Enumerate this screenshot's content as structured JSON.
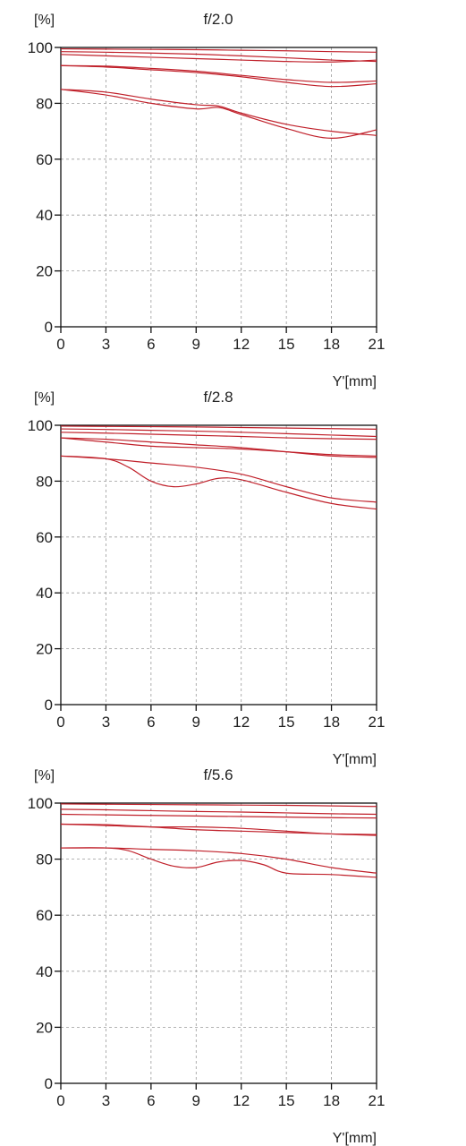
{
  "chart_data": [
    {
      "type": "line",
      "title": "f/2.0",
      "ylabel": "[%]",
      "xlabel": "Y'[mm]",
      "xlim": [
        0,
        21
      ],
      "ylim": [
        0,
        100
      ],
      "x_ticks": [
        "0",
        "3",
        "6",
        "9",
        "12",
        "15",
        "18",
        "21"
      ],
      "y_ticks": [
        "0",
        "20",
        "40",
        "60",
        "80",
        "100"
      ],
      "grid": true,
      "color": "#c0202a",
      "series": [
        {
          "x": [
            0,
            3,
            6,
            9,
            12,
            15,
            18,
            21
          ],
          "y": [
            99.5,
            99.4,
            99.3,
            99.2,
            99.0,
            98.8,
            98.5,
            98.3
          ]
        },
        {
          "x": [
            0,
            3,
            6,
            9,
            12,
            15,
            18,
            21
          ],
          "y": [
            98.5,
            98.3,
            98.0,
            97.6,
            97.0,
            96.3,
            95.5,
            95.0
          ]
        },
        {
          "x": [
            0,
            3,
            6,
            9,
            12,
            15,
            18,
            21
          ],
          "y": [
            97.5,
            97.0,
            96.5,
            96.0,
            95.5,
            95.0,
            94.8,
            95.5
          ]
        },
        {
          "x": [
            0,
            3,
            6,
            9,
            12,
            15,
            18,
            21
          ],
          "y": [
            93.5,
            93.3,
            92.5,
            91.5,
            90.0,
            88.5,
            87.5,
            88.0
          ]
        },
        {
          "x": [
            0,
            3,
            6,
            9,
            12,
            15,
            18,
            21
          ],
          "y": [
            93.5,
            93.0,
            92.0,
            91.0,
            89.5,
            87.5,
            86.0,
            87.0
          ]
        },
        {
          "x": [
            0,
            3,
            6,
            9,
            10.5,
            12,
            15,
            18,
            21
          ],
          "y": [
            85,
            83,
            80,
            78,
            78.5,
            76,
            71,
            67.5,
            70.5
          ]
        },
        {
          "x": [
            0,
            3,
            6,
            9,
            10.5,
            12,
            15,
            18,
            21
          ],
          "y": [
            85,
            84,
            81.5,
            79.5,
            79,
            76.5,
            72.5,
            70,
            68.5
          ]
        }
      ]
    },
    {
      "type": "line",
      "title": "f/2.8",
      "ylabel": "[%]",
      "xlabel": "Y'[mm]",
      "xlim": [
        0,
        21
      ],
      "ylim": [
        0,
        100
      ],
      "x_ticks": [
        "0",
        "3",
        "6",
        "9",
        "12",
        "15",
        "18",
        "21"
      ],
      "y_ticks": [
        "0",
        "20",
        "40",
        "60",
        "80",
        "100"
      ],
      "grid": true,
      "color": "#c0202a",
      "series": [
        {
          "x": [
            0,
            3,
            6,
            9,
            12,
            15,
            18,
            21
          ],
          "y": [
            99.7,
            99.6,
            99.5,
            99.4,
            99.2,
            99.0,
            98.8,
            98.6
          ]
        },
        {
          "x": [
            0,
            3,
            6,
            9,
            12,
            15,
            18,
            21
          ],
          "y": [
            98.7,
            98.5,
            98.2,
            97.9,
            97.5,
            97.0,
            96.5,
            96.0
          ]
        },
        {
          "x": [
            0,
            3,
            6,
            9,
            12,
            15,
            18,
            21
          ],
          "y": [
            97.5,
            97.2,
            96.8,
            96.4,
            96.0,
            95.5,
            95.2,
            95.0
          ]
        },
        {
          "x": [
            0,
            3,
            6,
            9,
            12,
            15,
            18,
            21
          ],
          "y": [
            95.5,
            95.0,
            94.0,
            93.0,
            92.0,
            90.5,
            89.0,
            88.5
          ]
        },
        {
          "x": [
            0,
            3,
            6,
            9,
            12,
            15,
            18,
            21
          ],
          "y": [
            95.5,
            94.0,
            92.5,
            92.0,
            91.5,
            90.5,
            89.5,
            89.0
          ]
        },
        {
          "x": [
            0,
            3,
            4.5,
            6,
            7.5,
            9,
            10.5,
            12,
            15,
            18,
            21
          ],
          "y": [
            89,
            88,
            85,
            80,
            78,
            79,
            81,
            80.5,
            76,
            72,
            70
          ]
        },
        {
          "x": [
            0,
            3,
            6,
            9,
            12,
            15,
            18,
            21
          ],
          "y": [
            89,
            88,
            86.5,
            85,
            82.5,
            78,
            74,
            72.5
          ]
        }
      ]
    },
    {
      "type": "line",
      "title": "f/5.6",
      "ylabel": "[%]",
      "xlabel": "Y'[mm]",
      "xlim": [
        0,
        21
      ],
      "ylim": [
        0,
        100
      ],
      "x_ticks": [
        "0",
        "3",
        "6",
        "9",
        "12",
        "15",
        "18",
        "21"
      ],
      "y_ticks": [
        "0",
        "20",
        "40",
        "60",
        "80",
        "100"
      ],
      "grid": true,
      "color": "#c0202a",
      "series": [
        {
          "x": [
            0,
            3,
            6,
            9,
            12,
            15,
            18,
            21
          ],
          "y": [
            99.7,
            99.6,
            99.5,
            99.4,
            99.3,
            99.2,
            99.0,
            98.8
          ]
        },
        {
          "x": [
            0,
            3,
            6,
            9,
            12,
            15,
            18,
            21
          ],
          "y": [
            97.8,
            97.6,
            97.3,
            97.0,
            96.8,
            96.5,
            96.2,
            96.0
          ]
        },
        {
          "x": [
            0,
            3,
            6,
            9,
            12,
            15,
            18,
            21
          ],
          "y": [
            96.0,
            95.8,
            95.6,
            95.4,
            95.2,
            95.0,
            94.8,
            94.7
          ]
        },
        {
          "x": [
            0,
            3,
            6,
            9,
            12,
            15,
            18,
            21
          ],
          "y": [
            92.5,
            92.3,
            91.5,
            90.5,
            90.0,
            89.5,
            89.0,
            88.8
          ]
        },
        {
          "x": [
            0,
            3,
            6,
            9,
            12,
            15,
            18,
            21
          ],
          "y": [
            92.5,
            92.0,
            91.5,
            91.5,
            91.0,
            90.0,
            89.0,
            88.5
          ]
        },
        {
          "x": [
            0,
            3,
            4.5,
            6,
            7.5,
            9,
            10.5,
            12,
            13.5,
            15,
            18,
            21
          ],
          "y": [
            84,
            84,
            83,
            80,
            77.5,
            77,
            79,
            79.5,
            78,
            75,
            74.5,
            73.5
          ]
        },
        {
          "x": [
            0,
            3,
            6,
            9,
            12,
            15,
            18,
            21
          ],
          "y": [
            84,
            84,
            83.5,
            83,
            82,
            80,
            77,
            75
          ]
        }
      ]
    }
  ]
}
